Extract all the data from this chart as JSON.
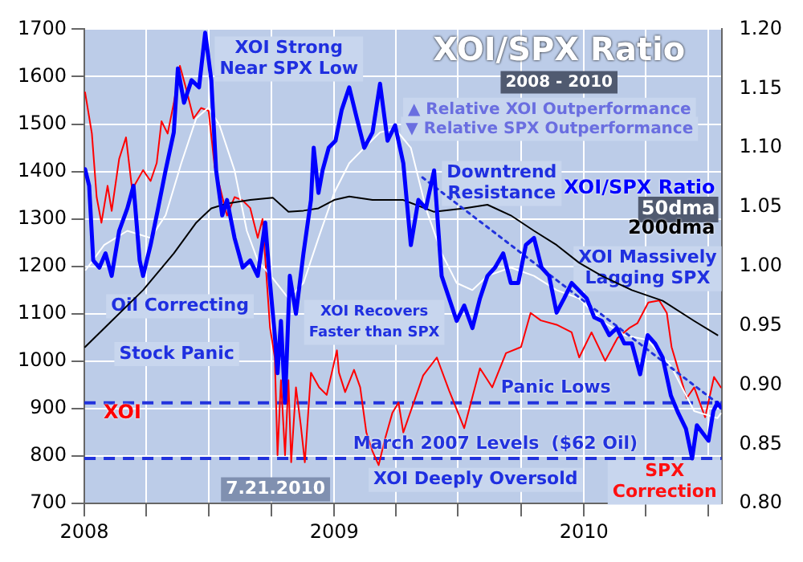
{
  "chart_data": {
    "type": "line",
    "title": "XOI/SPX Ratio",
    "subtitle": "2008 - 2010",
    "xlim": [
      "2008-01-01",
      "2010-07-21"
    ],
    "xticks": [
      "2008",
      {
        "value": "2008-04-01",
        "label": null
      },
      {
        "value": "2008-07-01",
        "label": null
      },
      {
        "value": "2008-10-01",
        "label": null
      },
      "2009",
      {
        "value": "2009-04-01",
        "label": null
      },
      {
        "value": "2009-07-01",
        "label": null
      },
      {
        "value": "2009-10-01",
        "label": null
      },
      "2010",
      {
        "value": "2010-04-01",
        "label": null
      },
      {
        "value": "2010-07-01",
        "label": null
      }
    ],
    "ylim": [
      700,
      1700
    ],
    "yticks": [
      700,
      800,
      900,
      1000,
      1100,
      1200,
      1300,
      1400,
      1500,
      1600,
      1700
    ],
    "y2lim": [
      0.8,
      1.2
    ],
    "y2ticks": [
      {
        "value": 0.8,
        "label": "0.80"
      },
      0.85,
      {
        "value": 0.9,
        "label": "0.90"
      },
      0.95,
      {
        "value": 1.0,
        "label": "1.00"
      },
      1.05,
      {
        "value": 1.1,
        "label": "1.10"
      },
      1.15,
      {
        "value": 1.2,
        "label": "1.20"
      }
    ],
    "grid": true,
    "series": [
      {
        "name": "XOI",
        "color": "#ff0000",
        "x": [
          "2008-01-02",
          "2008-01-12",
          "2008-01-19",
          "2008-01-26",
          "2008-02-04",
          "2008-02-10",
          "2008-02-21",
          "2008-03-02",
          "2008-03-11",
          "2008-03-27",
          "2008-04-07",
          "2008-04-16",
          "2008-04-23",
          "2008-05-02",
          "2008-05-11",
          "2008-05-20",
          "2008-05-29",
          "2008-06-09",
          "2008-06-20",
          "2008-07-01",
          "2008-07-10",
          "2008-07-17",
          "2008-07-28",
          "2008-08-08",
          "2008-08-20",
          "2008-08-31",
          "2008-09-11",
          "2008-09-18",
          "2008-09-29",
          "2008-10-06",
          "2008-10-10",
          "2008-10-15",
          "2008-10-21",
          "2008-10-26",
          "2008-10-30",
          "2008-11-06",
          "2008-11-13",
          "2008-11-19",
          "2008-11-28",
          "2008-12-10",
          "2008-12-21",
          "2009-01-05",
          "2009-01-08",
          "2009-01-17",
          "2009-01-30",
          "2009-02-08",
          "2009-02-17",
          "2009-02-26",
          "2009-03-07",
          "2009-03-16",
          "2009-03-27",
          "2009-04-05",
          "2009-04-12",
          "2009-05-11",
          "2009-05-31",
          "2009-06-18",
          "2009-07-10",
          "2009-08-02",
          "2009-08-20",
          "2009-09-09",
          "2009-10-01",
          "2009-10-15",
          "2009-10-30",
          "2009-11-22",
          "2009-12-14",
          "2009-12-25",
          "2010-01-12",
          "2010-02-01",
          "2010-02-19",
          "2010-03-09",
          "2010-03-20",
          "2010-04-05",
          "2010-04-21",
          "2010-05-02",
          "2010-05-09",
          "2010-05-20",
          "2010-05-31",
          "2010-06-11",
          "2010-06-27",
          "2010-07-10",
          "2010-07-20"
        ],
        "values": [
          1567,
          1480,
          1346,
          1292,
          1370,
          1317,
          1427,
          1472,
          1362,
          1403,
          1380,
          1418,
          1506,
          1480,
          1544,
          1623,
          1575,
          1512,
          1534,
          1528,
          1409,
          1370,
          1307,
          1346,
          1339,
          1323,
          1260,
          1300,
          1071,
          1008,
          802,
          960,
          802,
          960,
          787,
          945,
          866,
          787,
          976,
          945,
          929,
          1023,
          976,
          935,
          982,
          945,
          850,
          810,
          781,
          835,
          891,
          913,
          850,
          970,
          1008,
          938,
          859,
          985,
          945,
          1017,
          1030,
          1102,
          1086,
          1077,
          1061,
          1008,
          1061,
          1001,
          1049,
          1071,
          1080,
          1124,
          1128,
          1102,
          1030,
          976,
          922,
          945,
          882,
          967,
          945
        ]
      },
      {
        "name": "XOI/SPX Ratio",
        "color": "#0000ff",
        "axis": "y2",
        "x": [
          "2008-01-02",
          "2008-01-08",
          "2008-01-14",
          "2008-01-23",
          "2008-02-01",
          "2008-02-10",
          "2008-02-21",
          "2008-03-04",
          "2008-03-13",
          "2008-03-22",
          "2008-03-27",
          "2008-04-07",
          "2008-04-18",
          "2008-04-29",
          "2008-05-11",
          "2008-05-17",
          "2008-05-26",
          "2008-06-06",
          "2008-06-17",
          "2008-06-26",
          "2008-07-05",
          "2008-07-12",
          "2008-07-21",
          "2008-07-28",
          "2008-08-08",
          "2008-08-20",
          "2008-08-31",
          "2008-09-11",
          "2008-09-22",
          "2008-09-29",
          "2008-10-06",
          "2008-10-10",
          "2008-10-15",
          "2008-10-21",
          "2008-10-28",
          "2008-11-06",
          "2008-11-17",
          "2008-11-28",
          "2008-12-02",
          "2008-12-09",
          "2008-12-15",
          "2008-12-24",
          "2009-01-03",
          "2009-01-12",
          "2009-01-23",
          "2009-02-03",
          "2009-02-14",
          "2009-02-26",
          "2009-03-09",
          "2009-03-20",
          "2009-03-31",
          "2009-04-12",
          "2009-04-23",
          "2009-05-04",
          "2009-05-15",
          "2009-05-27",
          "2009-06-07",
          "2009-06-29",
          "2009-07-10",
          "2009-07-22",
          "2009-08-02",
          "2009-08-13",
          "2009-08-24",
          "2009-09-05",
          "2009-09-16",
          "2009-09-27",
          "2009-10-08",
          "2009-10-20",
          "2009-10-31",
          "2009-11-11",
          "2009-11-22",
          "2009-12-03",
          "2009-12-14",
          "2010-01-05",
          "2010-01-16",
          "2010-01-27",
          "2010-02-07",
          "2010-02-18",
          "2010-03-01",
          "2010-03-12",
          "2010-03-24",
          "2010-04-04",
          "2010-04-15",
          "2010-04-26",
          "2010-05-08",
          "2010-05-19",
          "2010-05-30",
          "2010-06-08",
          "2010-06-15",
          "2010-06-24",
          "2010-07-02",
          "2010-07-09",
          "2010-07-15",
          "2010-07-20"
        ],
        "values": [
          1.082,
          1.068,
          1.005,
          0.999,
          1.011,
          0.992,
          1.03,
          1.049,
          1.068,
          1.005,
          0.992,
          1.018,
          1.049,
          1.081,
          1.113,
          1.167,
          1.138,
          1.157,
          1.151,
          1.197,
          1.157,
          1.081,
          1.043,
          1.056,
          1.024,
          0.999,
          1.005,
          0.992,
          1.037,
          0.986,
          0.942,
          0.91,
          0.954,
          0.885,
          0.992,
          0.96,
          1.011,
          1.056,
          1.1,
          1.062,
          1.081,
          1.1,
          1.106,
          1.132,
          1.151,
          1.125,
          1.1,
          1.113,
          1.154,
          1.106,
          1.119,
          1.087,
          1.018,
          1.056,
          1.049,
          1.081,
          0.992,
          0.954,
          0.967,
          0.948,
          0.973,
          0.992,
          0.999,
          1.011,
          0.986,
          0.986,
          1.018,
          1.024,
          0.999,
          0.992,
          0.961,
          0.973,
          0.986,
          0.973,
          0.957,
          0.954,
          0.942,
          0.948,
          0.935,
          0.935,
          0.909,
          0.942,
          0.935,
          0.923,
          0.891,
          0.876,
          0.863,
          0.838,
          0.866,
          0.859,
          0.853,
          0.878,
          0.885,
          0.881
        ]
      },
      {
        "name": "50dma",
        "color": "#ffffff",
        "axis": "y2",
        "x": [
          "2008-01-03",
          "2008-01-30",
          "2008-03-04",
          "2008-04-07",
          "2008-04-29",
          "2008-05-22",
          "2008-06-13",
          "2008-07-01",
          "2008-07-17",
          "2008-08-08",
          "2008-08-26",
          "2008-09-11",
          "2008-10-03",
          "2008-10-26",
          "2008-11-17",
          "2008-12-09",
          "2009-01-01",
          "2009-01-23",
          "2009-02-14",
          "2009-03-09",
          "2009-03-31",
          "2009-04-23",
          "2009-05-15",
          "2009-06-07",
          "2009-06-29",
          "2009-07-22",
          "2009-08-13",
          "2009-09-16",
          "2009-10-20",
          "2009-11-22",
          "2009-12-25",
          "2010-01-27",
          "2010-03-01",
          "2010-04-04",
          "2010-05-08",
          "2010-06-11",
          "2010-07-15",
          "2010-07-20"
        ],
        "values": [
          0.997,
          1.018,
          1.03,
          1.024,
          1.043,
          1.087,
          1.125,
          1.134,
          1.119,
          1.081,
          1.03,
          1.005,
          0.99,
          0.973,
          0.986,
          1.024,
          1.062,
          1.087,
          1.1,
          1.113,
          1.116,
          1.1,
          1.049,
          1.011,
          0.986,
          0.98,
          0.992,
          0.999,
          0.992,
          0.98,
          0.973,
          0.954,
          0.942,
          0.938,
          0.916,
          0.878,
          0.872,
          0.876
        ]
      },
      {
        "name": "200dma",
        "color": "#000000",
        "axis": "y2",
        "x": [
          "2008-01-02",
          "2008-02-10",
          "2008-03-27",
          "2008-05-11",
          "2008-06-13",
          "2008-07-05",
          "2008-07-28",
          "2008-08-31",
          "2008-10-03",
          "2008-10-26",
          "2008-11-17",
          "2008-12-09",
          "2009-01-01",
          "2009-01-23",
          "2009-02-26",
          "2009-04-12",
          "2009-05-27",
          "2009-07-10",
          "2009-08-13",
          "2009-09-16",
          "2009-10-20",
          "2009-11-22",
          "2009-12-25",
          "2010-01-27",
          "2010-03-12",
          "2010-04-26",
          "2010-06-11",
          "2010-07-15"
        ],
        "values": [
          0.932,
          0.954,
          0.98,
          1.011,
          1.037,
          1.049,
          1.053,
          1.056,
          1.058,
          1.046,
          1.047,
          1.049,
          1.056,
          1.059,
          1.056,
          1.056,
          1.046,
          1.049,
          1.052,
          1.043,
          1.03,
          1.018,
          1.003,
          0.992,
          0.98,
          0.971,
          0.954,
          0.942
        ]
      },
      {
        "type": "line",
        "color": "#2233dd",
        "axis": "y2",
        "line_style": "dotted",
        "x": [
          "2009-05-10",
          "2010-07-21"
        ],
        "values": [
          1.075,
          0.882
        ]
      }
    ],
    "ref_lines": [
      {
        "axis": "y2",
        "value": 0.885,
        "label": "Panic Lows",
        "color": "#2233dd",
        "line_style": "dashed"
      },
      {
        "axis": "y2",
        "value": 0.838,
        "label": "March 2007 Levels  ($62 Oil)",
        "color": "#2233dd",
        "line_style": "dashed"
      }
    ],
    "annotations": [
      "XOI Strong\nNear SPX Low",
      "Downtrend\nResistance",
      "Oil Correcting",
      "XOI Recovers\nFaster than SPX",
      "Stock Panic",
      "XOI Massively\nLagging SPX",
      "SPX\nCorrection",
      "XOI Deeply Oversold",
      "▲ Relative XOI Outperformance",
      "▼ Relative SPX Outperformance",
      "7.21.2010"
    ]
  }
}
